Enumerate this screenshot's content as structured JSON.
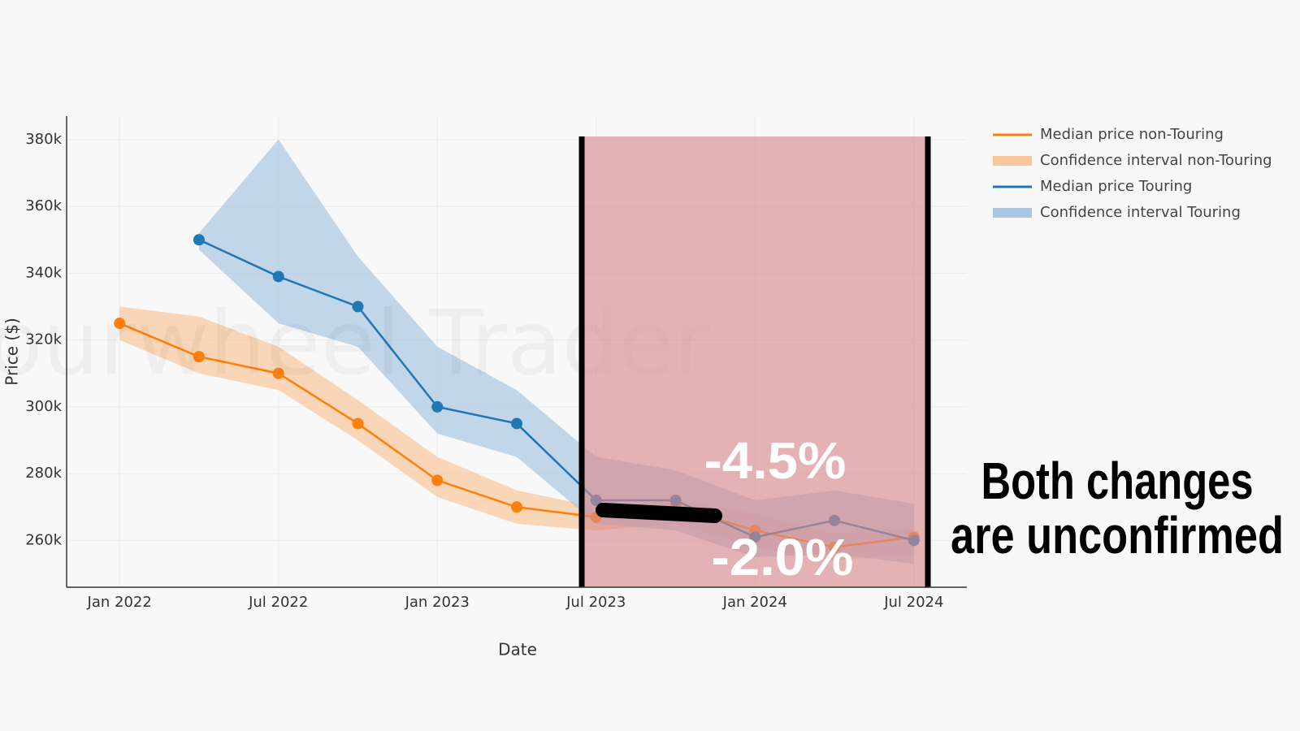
{
  "chart_data": {
    "type": "line",
    "x_title": "Date",
    "y_title": "Price ($)",
    "watermark": "Fourwheel Trader",
    "x": [
      "2022-01",
      "2022-04",
      "2022-07",
      "2022-10",
      "2023-01",
      "2023-04",
      "2023-07",
      "2023-10",
      "2024-01",
      "2024-04",
      "2024-07"
    ],
    "series": [
      {
        "name": "Median price non-Touring",
        "color": "#ff7f0e",
        "values": [
          325000,
          315000,
          310000,
          295000,
          278000,
          270000,
          267000,
          270000,
          263000,
          258000,
          261000
        ]
      },
      {
        "name": "Confidence interval non-Touring",
        "color": "#f8c79b",
        "lower": [
          320000,
          310000,
          305000,
          290000,
          273000,
          265000,
          263000,
          265000,
          258000,
          254000,
          256000
        ],
        "upper": [
          330000,
          327000,
          318000,
          302000,
          285000,
          275000,
          270000,
          272000,
          268000,
          262000,
          264000
        ]
      },
      {
        "name": "Median price Touring",
        "color": "#1f77b4",
        "values": [
          null,
          350000,
          339000,
          330000,
          300000,
          295000,
          272000,
          272000,
          261000,
          266000,
          260000
        ]
      },
      {
        "name": "Confidence interval Touring",
        "color": "#a9c7e3",
        "lower": [
          null,
          347000,
          325000,
          318000,
          292000,
          285000,
          265000,
          263000,
          255000,
          256000,
          253000
        ],
        "upper": [
          null,
          352000,
          380000,
          345000,
          318000,
          305000,
          285000,
          281000,
          272000,
          275000,
          271000
        ]
      }
    ],
    "xlim": [
      "2021-11",
      "2024-09"
    ],
    "xticks": [
      {
        "value": "2022-01",
        "label": "Jan 2022"
      },
      {
        "value": "2022-07",
        "label": "Jul 2022"
      },
      {
        "value": "2023-01",
        "label": "Jan 2023"
      },
      {
        "value": "2023-07",
        "label": "Jul 2023"
      },
      {
        "value": "2024-01",
        "label": "Jan 2024"
      },
      {
        "value": "2024-07",
        "label": "Jul 2024"
      }
    ],
    "ylim": [
      246000,
      387000
    ],
    "yticks": [
      {
        "value": 260000,
        "label": "260k"
      },
      {
        "value": 280000,
        "label": "280k"
      },
      {
        "value": 300000,
        "label": "300k"
      },
      {
        "value": 320000,
        "label": "320k"
      },
      {
        "value": 340000,
        "label": "340k"
      },
      {
        "value": 360000,
        "label": "360k"
      },
      {
        "value": 380000,
        "label": "380k"
      }
    ],
    "annotations": [
      "-4.5%",
      "-2.0%"
    ],
    "caption": [
      "Both changes",
      "are unconfirmed"
    ]
  }
}
